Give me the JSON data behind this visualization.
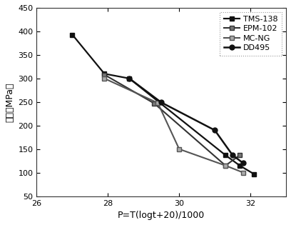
{
  "series": [
    {
      "label": "TMS-138",
      "x": [
        27.0,
        27.9,
        28.6,
        31.3,
        31.7,
        32.1
      ],
      "y": [
        393,
        310,
        300,
        137,
        115,
        97
      ],
      "color": "#111111",
      "marker": "s",
      "marker_face": "#111111",
      "linewidth": 1.6,
      "markersize": 5
    },
    {
      "label": "EPM-102",
      "x": [
        27.9,
        29.3,
        31.3,
        31.7
      ],
      "y": [
        308,
        247,
        115,
        137
      ],
      "color": "#333333",
      "marker": "s",
      "marker_face": "#777777",
      "linewidth": 1.5,
      "markersize": 5
    },
    {
      "label": "MC-NG",
      "x": [
        27.9,
        29.4,
        30.0,
        31.3,
        31.8
      ],
      "y": [
        300,
        248,
        150,
        115,
        100
      ],
      "color": "#555555",
      "marker": "s",
      "marker_face": "#aaaaaa",
      "linewidth": 1.5,
      "markersize": 5
    },
    {
      "label": "DD495",
      "x": [
        28.6,
        29.5,
        31.0,
        31.5,
        31.8
      ],
      "y": [
        300,
        249,
        190,
        137,
        120
      ],
      "color": "#111111",
      "marker": "o",
      "marker_face": "#111111",
      "linewidth": 1.8,
      "markersize": 5
    }
  ],
  "xlabel": "P=T(logt+20)/1000",
  "ylabel": "应力（MPa）",
  "xlim": [
    26,
    33
  ],
  "ylim": [
    50,
    450
  ],
  "xticks": [
    26,
    28,
    30,
    32
  ],
  "yticks": [
    50,
    100,
    150,
    200,
    250,
    300,
    350,
    400,
    450
  ],
  "legend_loc": "upper right",
  "background_color": "#ffffff"
}
